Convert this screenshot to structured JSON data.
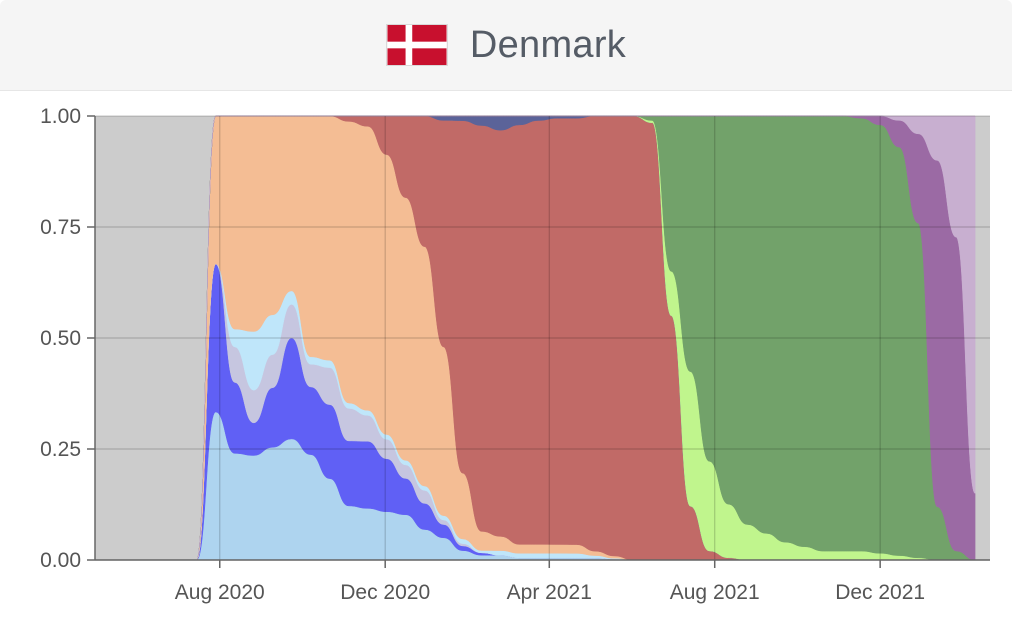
{
  "header": {
    "title": "Denmark",
    "flag_icon": "denmark-flag-icon",
    "flag_colors": {
      "red": "#C8102E",
      "cross": "#ffffff"
    }
  },
  "chart_data": {
    "type": "area",
    "stacked": "normalized",
    "title": "",
    "xlabel": "",
    "ylabel": "",
    "ylim": [
      0,
      1
    ],
    "xlim": [
      "2020-05-01",
      "2022-02-20"
    ],
    "grid": true,
    "legend": "none",
    "background_color": "#cccccc",
    "y_ticks": [
      "0.00",
      "0.25",
      "0.50",
      "0.75",
      "1.00"
    ],
    "x_ticks": [
      {
        "date": "2020-08-01",
        "label": "Aug 2020"
      },
      {
        "date": "2020-12-01",
        "label": "Dec 2020"
      },
      {
        "date": "2021-04-01",
        "label": "Apr 2021"
      },
      {
        "date": "2021-08-01",
        "label": "Aug 2021"
      },
      {
        "date": "2021-12-01",
        "label": "Dec 2021"
      }
    ],
    "x": [
      "2020-06-17",
      "2020-07-01",
      "2020-07-15",
      "2020-07-29",
      "2020-08-12",
      "2020-08-26",
      "2020-09-09",
      "2020-09-23",
      "2020-10-07",
      "2020-10-21",
      "2020-11-04",
      "2020-11-18",
      "2020-12-02",
      "2020-12-16",
      "2020-12-30",
      "2021-01-13",
      "2021-01-27",
      "2021-02-10",
      "2021-02-24",
      "2021-03-10",
      "2021-03-24",
      "2021-04-07",
      "2021-04-21",
      "2021-05-05",
      "2021-05-19",
      "2021-06-02",
      "2021-06-16",
      "2021-06-30",
      "2021-07-14",
      "2021-07-28",
      "2021-08-11",
      "2021-08-25",
      "2021-09-08",
      "2021-09-22",
      "2021-10-06",
      "2021-10-20",
      "2021-11-03",
      "2021-11-17",
      "2021-12-01",
      "2021-12-15",
      "2021-12-29",
      "2022-01-12",
      "2022-01-26",
      "2022-02-09"
    ],
    "series": [
      {
        "color": "#aed4ef",
        "values": [
          0,
          0,
          0,
          0.01,
          0.06,
          0.16,
          0.17,
          0.18,
          0.14,
          0.11,
          0.1,
          0.1,
          0.1,
          0.1,
          0.07,
          0.05,
          0.02,
          0.01,
          0.01,
          0.005,
          0.005,
          0.005,
          0.005,
          0.005,
          0.002,
          0,
          0,
          0,
          0,
          0,
          0,
          0,
          0,
          0,
          0,
          0,
          0,
          0,
          0,
          0,
          0,
          0,
          0,
          0
        ]
      },
      {
        "color": "#6060f5",
        "values": [
          0,
          0,
          0,
          0.01,
          0.04,
          0.05,
          0.09,
          0.15,
          0.09,
          0.1,
          0.12,
          0.13,
          0.11,
          0.08,
          0.06,
          0.03,
          0.01,
          0.005,
          0,
          0,
          0,
          0,
          0,
          0,
          0,
          0,
          0,
          0,
          0,
          0,
          0,
          0,
          0,
          0,
          0,
          0,
          0,
          0,
          0,
          0,
          0,
          0,
          0,
          0
        ]
      },
      {
        "color": "#c6c6e0",
        "values": [
          0,
          0,
          0,
          0,
          0.02,
          0.05,
          0.05,
          0.05,
          0.03,
          0.05,
          0.06,
          0.05,
          0.04,
          0.03,
          0.03,
          0.01,
          0.005,
          0,
          0,
          0,
          0,
          0,
          0,
          0,
          0,
          0,
          0,
          0,
          0,
          0,
          0,
          0,
          0,
          0,
          0,
          0,
          0,
          0,
          0,
          0,
          0,
          0,
          0,
          0
        ]
      },
      {
        "color": "#bfe6fa",
        "values": [
          0,
          0,
          0,
          0,
          0.01,
          0.09,
          0.06,
          0.02,
          0.01,
          0.01,
          0.01,
          0.01,
          0.01,
          0.01,
          0.01,
          0.01,
          0.01,
          0.005,
          0.01,
          0.01,
          0.01,
          0.01,
          0.01,
          0.005,
          0.002,
          0,
          0,
          0,
          0,
          0,
          0,
          0,
          0,
          0,
          0,
          0,
          0,
          0,
          0,
          0,
          0,
          0,
          0,
          0
        ]
      },
      {
        "color": "#f4bd94",
        "values": [
          0,
          0,
          0,
          0.01,
          0.12,
          0.33,
          0.3,
          0.26,
          0.32,
          0.33,
          0.52,
          0.55,
          0.58,
          0.58,
          0.55,
          0.38,
          0.14,
          0.04,
          0.03,
          0.02,
          0.02,
          0.02,
          0.02,
          0.01,
          0.005,
          0,
          0,
          0,
          0,
          0,
          0,
          0,
          0,
          0,
          0,
          0,
          0,
          0,
          0,
          0,
          0,
          0,
          0,
          0
        ]
      },
      {
        "color": "#c16a67",
        "values": [
          0,
          0,
          0,
          0,
          0,
          0,
          0,
          0,
          0,
          0,
          0.01,
          0.02,
          0.08,
          0.18,
          0.3,
          0.51,
          0.75,
          0.85,
          0.86,
          0.94,
          0.95,
          0.96,
          0.97,
          0.985,
          0.99,
          0.99,
          0.97,
          0.55,
          0.12,
          0.02,
          0.005,
          0,
          0,
          0,
          0,
          0,
          0,
          0,
          0,
          0,
          0,
          0,
          0,
          0
        ]
      },
      {
        "color": "#5b6399",
        "values": [
          0,
          0,
          0,
          0,
          0,
          0,
          0,
          0,
          0,
          0,
          0,
          0,
          0,
          0,
          0,
          0.01,
          0.01,
          0.02,
          0.03,
          0.02,
          0.01,
          0.005,
          0.005,
          0,
          0,
          0,
          0,
          0,
          0,
          0,
          0,
          0,
          0,
          0,
          0,
          0,
          0,
          0,
          0,
          0,
          0,
          0,
          0,
          0
        ]
      },
      {
        "color": "#c0f58d",
        "values": [
          0,
          0,
          0,
          0,
          0,
          0,
          0,
          0,
          0,
          0,
          0,
          0,
          0,
          0,
          0,
          0,
          0,
          0,
          0,
          0,
          0,
          0,
          0,
          0,
          0,
          0,
          0.005,
          0.1,
          0.3,
          0.2,
          0.12,
          0.08,
          0.06,
          0.04,
          0.03,
          0.02,
          0.02,
          0.02,
          0.015,
          0.01,
          0.005,
          0,
          0,
          0
        ]
      },
      {
        "color": "#72a26a",
        "values": [
          0,
          0,
          0,
          0,
          0,
          0,
          0,
          0,
          0,
          0,
          0,
          0,
          0,
          0,
          0,
          0,
          0,
          0,
          0,
          0,
          0,
          0,
          0,
          0,
          0,
          0,
          0.01,
          0.35,
          0.57,
          0.77,
          0.87,
          0.92,
          0.94,
          0.96,
          0.97,
          0.98,
          0.98,
          0.975,
          0.96,
          0.92,
          0.75,
          0.12,
          0.02,
          0
        ]
      },
      {
        "color": "#9b6aa4",
        "values": [
          0,
          0,
          0,
          0,
          0,
          0,
          0,
          0,
          0,
          0,
          0,
          0,
          0,
          0,
          0,
          0,
          0,
          0,
          0,
          0,
          0,
          0,
          0,
          0,
          0,
          0,
          0,
          0,
          0,
          0,
          0,
          0,
          0,
          0,
          0,
          0,
          0,
          0.005,
          0.02,
          0.06,
          0.2,
          0.78,
          0.7,
          0.15
        ]
      },
      {
        "color": "#c8afd0",
        "values": [
          0,
          0,
          0,
          0,
          0,
          0,
          0,
          0,
          0,
          0,
          0,
          0,
          0,
          0,
          0,
          0,
          0,
          0,
          0,
          0,
          0,
          0,
          0,
          0,
          0,
          0,
          0,
          0,
          0,
          0,
          0,
          0,
          0,
          0,
          0,
          0,
          0,
          0,
          0,
          0.01,
          0.04,
          0.1,
          0.27,
          0.85
        ]
      }
    ]
  }
}
